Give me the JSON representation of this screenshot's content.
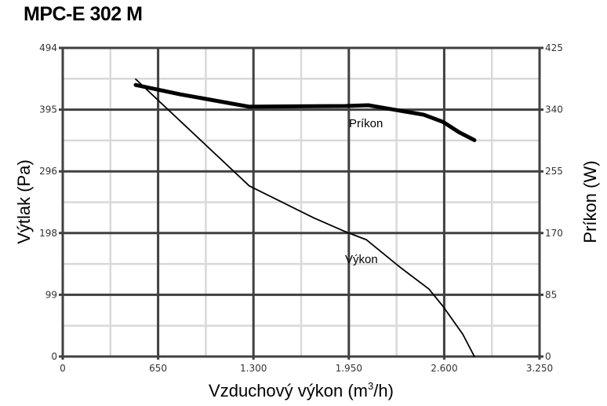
{
  "title": "MPC-E 302 M",
  "chart_data": {
    "type": "line",
    "title": "MPC-E 302 M",
    "xlabel": "Vzduchový výkon (m",
    "xlabel_sup": "3",
    "xlabel_tail": "/h)",
    "ylabel": "Výtlak (Pa)",
    "y2label": "Príkon (W)",
    "xlim": [
      0,
      3250
    ],
    "ylim": [
      0,
      494
    ],
    "y2lim": [
      0,
      425
    ],
    "x_ticks": [
      "0",
      "650",
      "1.300",
      "1.950",
      "2.600",
      "3.250"
    ],
    "y_ticks": [
      "0",
      "99",
      "198",
      "296",
      "395",
      "494"
    ],
    "y2_ticks": [
      "0",
      "85",
      "170",
      "255",
      "340",
      "425"
    ],
    "grid": true,
    "colors": {
      "major_grid": "#404040",
      "minor_grid": "#d9d9d9",
      "line": "#000000"
    },
    "series": [
      {
        "name": "Výkon",
        "axis": "left",
        "x": [
          497,
          1272,
          1711,
          1925,
          2069,
          2299,
          2496,
          2593,
          2726,
          2806
        ],
        "y": [
          444,
          273,
          222,
          200,
          187,
          143,
          108,
          80,
          36,
          0
        ]
      },
      {
        "name": "Príkon",
        "axis": "right",
        "x": [
          497,
          802,
          1272,
          1925,
          2085,
          2460,
          2593,
          2700,
          2806
        ],
        "y": [
          374,
          361,
          344,
          345,
          346,
          333,
          323,
          309,
          298
        ]
      }
    ]
  }
}
